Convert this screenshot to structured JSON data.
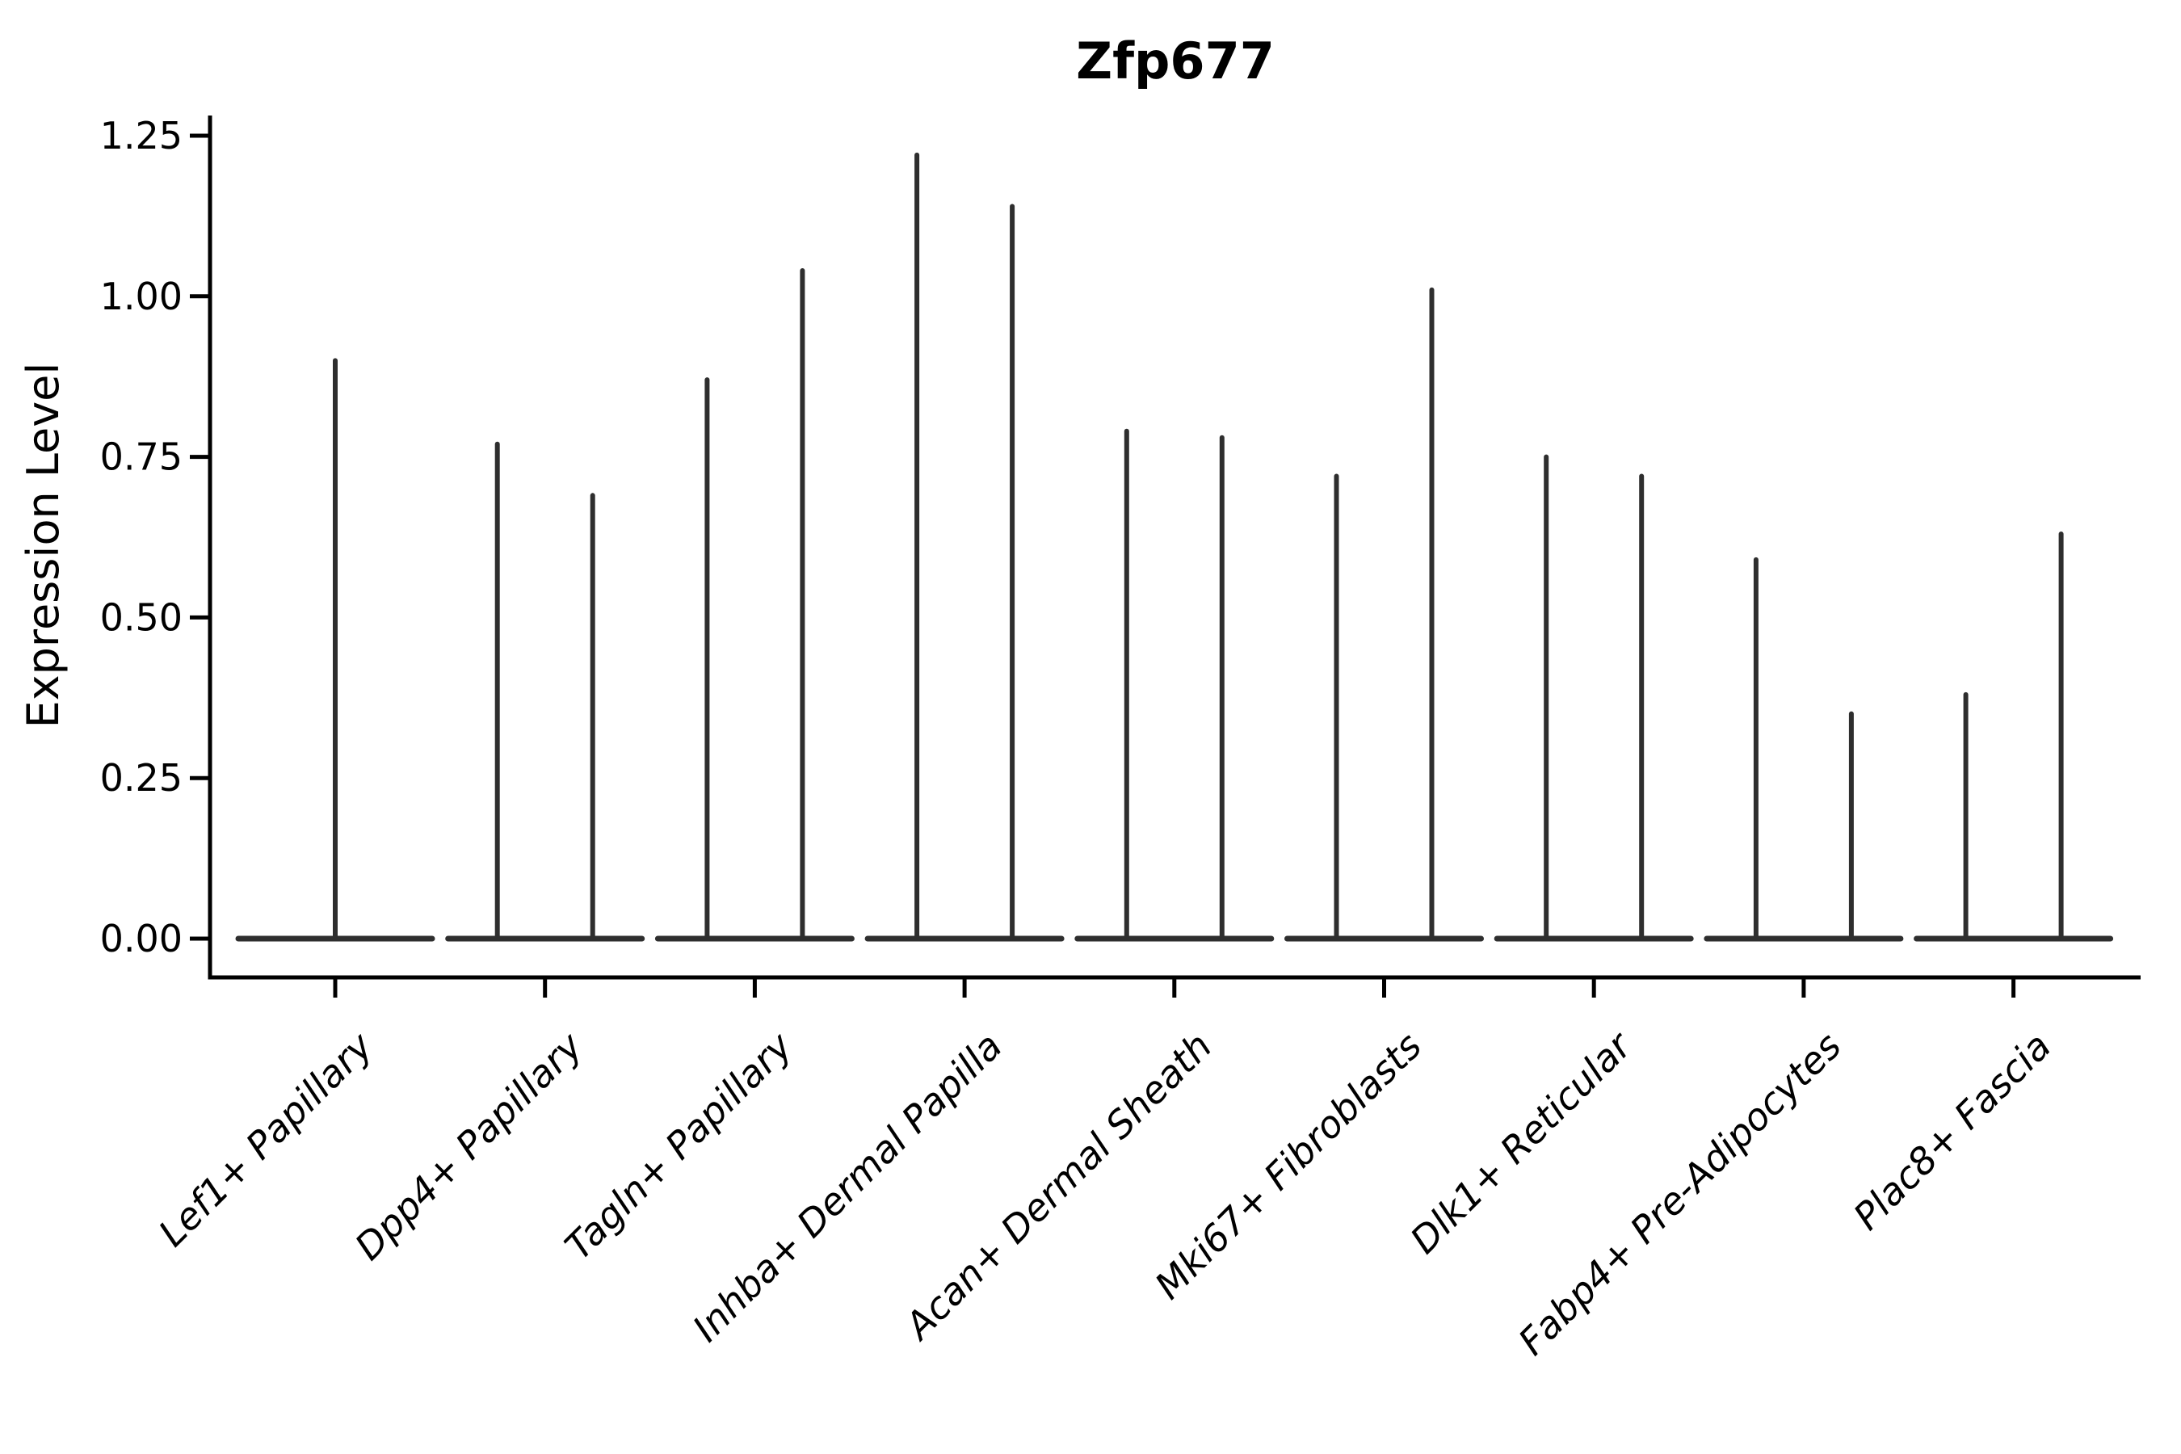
{
  "figure": {
    "title": "Zfp677",
    "background_color": "#ffffff"
  },
  "chart_data": {
    "type": "violin",
    "title": "Zfp677",
    "xlabel": "",
    "ylabel": "Expression Level",
    "ylim": [
      -0.06,
      1.28
    ],
    "grid": false,
    "legend": "none",
    "y_ticks": [
      "0.00",
      "0.25",
      "0.50",
      "0.75",
      "1.00",
      "1.25"
    ],
    "y_tick_values": [
      0.0,
      0.25,
      0.5,
      0.75,
      1.0,
      1.25
    ],
    "categories": [
      "Lef1+ Papillary",
      "Dpp4+ Papillary",
      "Tagln+ Papillary",
      "Inhba+ Dermal Papilla",
      "Acan+ Dermal Sheath",
      "Mki67+ Fibroblasts",
      "Dlk1+ Reticular",
      "Fabp4+ Pre-Adipocytes",
      "Plac8+ Fascia"
    ],
    "violins": [
      {
        "category": "Lef1+ Papillary",
        "baseline_value": 0,
        "spike_max_values": [
          0.9
        ]
      },
      {
        "category": "Dpp4+ Papillary",
        "baseline_value": 0,
        "spike_max_values": [
          0.77,
          0.69
        ]
      },
      {
        "category": "Tagln+ Papillary",
        "baseline_value": 0,
        "spike_max_values": [
          0.87,
          1.04
        ]
      },
      {
        "category": "Inhba+ Dermal Papilla",
        "baseline_value": 0,
        "spike_max_values": [
          1.22,
          1.14
        ]
      },
      {
        "category": "Acan+ Dermal Sheath",
        "baseline_value": 0,
        "spike_max_values": [
          0.79,
          0.78
        ]
      },
      {
        "category": "Mki67+ Fibroblasts",
        "baseline_value": 0,
        "spike_max_values": [
          0.72,
          1.01
        ]
      },
      {
        "category": "Dlk1+ Reticular",
        "baseline_value": 0,
        "spike_max_values": [
          0.75,
          0.72
        ]
      },
      {
        "category": "Fabp4+ Pre-Adipocytes",
        "baseline_value": 0,
        "spike_max_values": [
          0.59,
          0.35
        ]
      },
      {
        "category": "Plac8+ Fascia",
        "baseline_value": 0,
        "spike_max_values": [
          0.38,
          0.63
        ]
      }
    ],
    "colors": {
      "violin_line": "#2e2e2e",
      "axis": "#000000",
      "text": "#000000"
    }
  }
}
